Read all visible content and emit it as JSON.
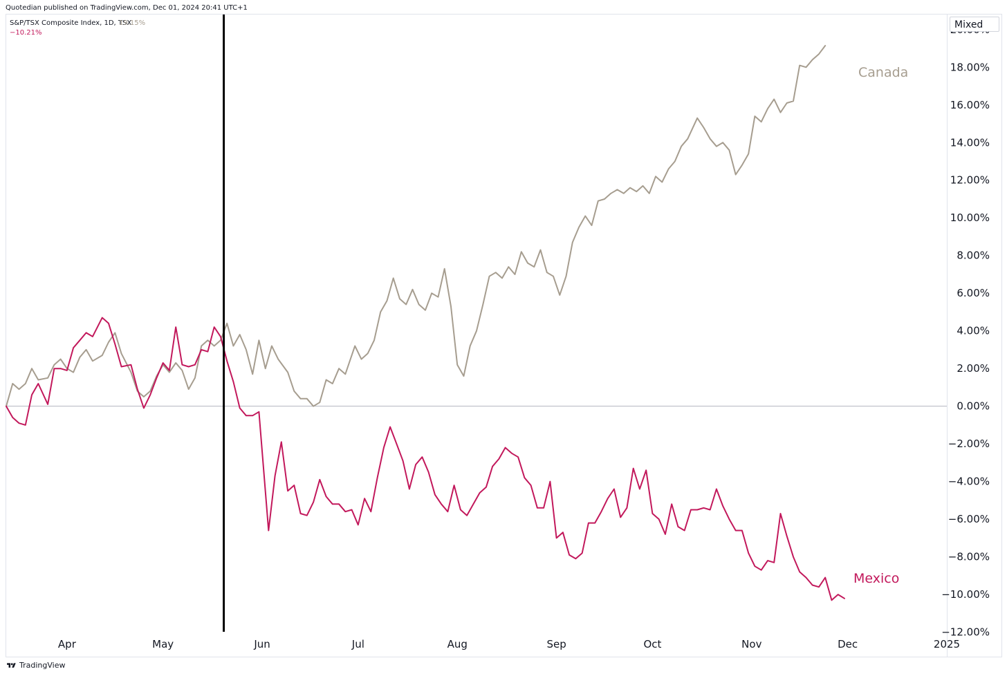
{
  "header": {
    "published_text": "Quotedian published on TradingView.com, Dec 01, 2024 20:41 UTC+1"
  },
  "legend": {
    "symbol_text": "S&P/TSX Composite Index, 1D, TSX",
    "canada_value": "19.15%",
    "mexico_value": "−10.21%"
  },
  "mode_button": {
    "label": "Mixed"
  },
  "footer": {
    "brand": "TradingView",
    "logo_icon": "tradingview-logo-icon"
  },
  "colors": {
    "canada": "#a69d8f",
    "mexico": "#c2185b",
    "zero_line": "#b2b5be",
    "marker": "#000000"
  },
  "chart_data": {
    "type": "line",
    "y_unit": "%",
    "ylim": [
      -13.3,
      20.8
    ],
    "y_ticks": [
      "20.00%",
      "18.00%",
      "16.00%",
      "14.00%",
      "12.00%",
      "10.00%",
      "8.00%",
      "6.00%",
      "4.00%",
      "2.00%",
      "0.00%",
      "−2.00%",
      "−4.00%",
      "−6.00%",
      "−8.00%",
      "−10.00%",
      "−12.00%"
    ],
    "y_tick_values": [
      20,
      18,
      16,
      14,
      12,
      10,
      8,
      6,
      4,
      2,
      0,
      -2,
      -4,
      -6,
      -8,
      -10,
      -12
    ],
    "x_ticks": [
      {
        "label": "Apr",
        "date": "2024-04-01"
      },
      {
        "label": "May",
        "date": "2024-05-01"
      },
      {
        "label": "Jun",
        "date": "2024-06-01"
      },
      {
        "label": "Jul",
        "date": "2024-07-01"
      },
      {
        "label": "Aug",
        "date": "2024-08-01"
      },
      {
        "label": "Sep",
        "date": "2024-09-01"
      },
      {
        "label": "Oct",
        "date": "2024-10-01"
      },
      {
        "label": "Nov",
        "date": "2024-11-01"
      },
      {
        "label": "Dec",
        "date": "2024-12-01"
      },
      {
        "label": "2025",
        "date": "2025-01-01"
      }
    ],
    "xlim": [
      "2024-03-13",
      "2025-01-01"
    ],
    "zero_line": true,
    "vertical_marker": {
      "date": "2024-05-20"
    },
    "series": [
      {
        "name": "Canada",
        "points": [
          [
            "2024-03-13",
            0.0
          ],
          [
            "2024-03-15",
            1.2
          ],
          [
            "2024-03-17",
            0.9
          ],
          [
            "2024-03-19",
            1.2
          ],
          [
            "2024-03-21",
            2.0
          ],
          [
            "2024-03-23",
            1.4
          ],
          [
            "2024-03-26",
            1.5
          ],
          [
            "2024-03-28",
            2.2
          ],
          [
            "2024-03-30",
            2.5
          ],
          [
            "2024-04-01",
            2.0
          ],
          [
            "2024-04-03",
            1.8
          ],
          [
            "2024-04-05",
            2.6
          ],
          [
            "2024-04-07",
            3.0
          ],
          [
            "2024-04-09",
            2.4
          ],
          [
            "2024-04-12",
            2.7
          ],
          [
            "2024-04-14",
            3.4
          ],
          [
            "2024-04-16",
            3.9
          ],
          [
            "2024-04-18",
            2.8
          ],
          [
            "2024-04-21",
            1.8
          ],
          [
            "2024-04-23",
            0.8
          ],
          [
            "2024-04-25",
            0.5
          ],
          [
            "2024-04-27",
            0.8
          ],
          [
            "2024-04-29",
            1.6
          ],
          [
            "2024-05-01",
            2.2
          ],
          [
            "2024-05-03",
            1.8
          ],
          [
            "2024-05-05",
            2.3
          ],
          [
            "2024-05-07",
            1.9
          ],
          [
            "2024-05-09",
            0.9
          ],
          [
            "2024-05-11",
            1.5
          ],
          [
            "2024-05-13",
            3.2
          ],
          [
            "2024-05-15",
            3.5
          ],
          [
            "2024-05-17",
            3.2
          ],
          [
            "2024-05-19",
            3.5
          ],
          [
            "2024-05-21",
            4.4
          ],
          [
            "2024-05-23",
            3.2
          ],
          [
            "2024-05-25",
            3.8
          ],
          [
            "2024-05-27",
            3.0
          ],
          [
            "2024-05-29",
            1.7
          ],
          [
            "2024-05-31",
            3.5
          ],
          [
            "2024-06-02",
            2.0
          ],
          [
            "2024-06-04",
            3.2
          ],
          [
            "2024-06-06",
            2.5
          ],
          [
            "2024-06-09",
            1.8
          ],
          [
            "2024-06-11",
            0.8
          ],
          [
            "2024-06-13",
            0.4
          ],
          [
            "2024-06-15",
            0.4
          ],
          [
            "2024-06-17",
            0.0
          ],
          [
            "2024-06-19",
            0.2
          ],
          [
            "2024-06-21",
            1.4
          ],
          [
            "2024-06-23",
            1.2
          ],
          [
            "2024-06-25",
            2.0
          ],
          [
            "2024-06-27",
            1.7
          ],
          [
            "2024-06-30",
            3.2
          ],
          [
            "2024-07-02",
            2.5
          ],
          [
            "2024-07-04",
            2.8
          ],
          [
            "2024-07-06",
            3.5
          ],
          [
            "2024-07-08",
            5.0
          ],
          [
            "2024-07-10",
            5.6
          ],
          [
            "2024-07-12",
            6.8
          ],
          [
            "2024-07-14",
            5.7
          ],
          [
            "2024-07-16",
            5.4
          ],
          [
            "2024-07-18",
            6.2
          ],
          [
            "2024-07-20",
            5.4
          ],
          [
            "2024-07-22",
            5.1
          ],
          [
            "2024-07-24",
            6.0
          ],
          [
            "2024-07-26",
            5.8
          ],
          [
            "2024-07-28",
            7.3
          ],
          [
            "2024-07-30",
            5.3
          ],
          [
            "2024-08-01",
            2.2
          ],
          [
            "2024-08-03",
            1.6
          ],
          [
            "2024-08-05",
            3.2
          ],
          [
            "2024-08-07",
            4.0
          ],
          [
            "2024-08-09",
            5.4
          ],
          [
            "2024-08-11",
            6.9
          ],
          [
            "2024-08-13",
            7.1
          ],
          [
            "2024-08-15",
            6.8
          ],
          [
            "2024-08-17",
            7.4
          ],
          [
            "2024-08-19",
            7.0
          ],
          [
            "2024-08-21",
            8.2
          ],
          [
            "2024-08-23",
            7.6
          ],
          [
            "2024-08-25",
            7.4
          ],
          [
            "2024-08-27",
            8.3
          ],
          [
            "2024-08-29",
            7.1
          ],
          [
            "2024-08-31",
            6.9
          ],
          [
            "2024-09-02",
            5.9
          ],
          [
            "2024-09-04",
            6.9
          ],
          [
            "2024-09-06",
            8.7
          ],
          [
            "2024-09-08",
            9.5
          ],
          [
            "2024-09-10",
            10.1
          ],
          [
            "2024-09-12",
            9.6
          ],
          [
            "2024-09-14",
            10.9
          ],
          [
            "2024-09-16",
            11.0
          ],
          [
            "2024-09-18",
            11.3
          ],
          [
            "2024-09-20",
            11.5
          ],
          [
            "2024-09-22",
            11.3
          ],
          [
            "2024-09-24",
            11.6
          ],
          [
            "2024-09-26",
            11.4
          ],
          [
            "2024-09-28",
            11.7
          ],
          [
            "2024-09-30",
            11.3
          ],
          [
            "2024-10-02",
            12.2
          ],
          [
            "2024-10-04",
            11.9
          ],
          [
            "2024-10-06",
            12.6
          ],
          [
            "2024-10-08",
            13.0
          ],
          [
            "2024-10-10",
            13.8
          ],
          [
            "2024-10-12",
            14.2
          ],
          [
            "2024-10-15",
            15.3
          ],
          [
            "2024-10-17",
            14.8
          ],
          [
            "2024-10-19",
            14.2
          ],
          [
            "2024-10-21",
            13.8
          ],
          [
            "2024-10-23",
            14.0
          ],
          [
            "2024-10-25",
            13.6
          ],
          [
            "2024-10-27",
            12.3
          ],
          [
            "2024-10-29",
            12.8
          ],
          [
            "2024-10-31",
            13.4
          ],
          [
            "2024-11-02",
            15.4
          ],
          [
            "2024-11-04",
            15.1
          ],
          [
            "2024-11-06",
            15.8
          ],
          [
            "2024-11-08",
            16.3
          ],
          [
            "2024-11-10",
            15.6
          ],
          [
            "2024-11-12",
            16.1
          ],
          [
            "2024-11-14",
            16.2
          ],
          [
            "2024-11-16",
            18.1
          ],
          [
            "2024-11-18",
            18.0
          ],
          [
            "2024-11-20",
            18.4
          ],
          [
            "2024-11-22",
            18.7
          ],
          [
            "2024-11-24",
            19.15
          ]
        ]
      },
      {
        "name": "Mexico",
        "points": [
          [
            "2024-03-13",
            0.0
          ],
          [
            "2024-03-15",
            -0.6
          ],
          [
            "2024-03-17",
            -0.9
          ],
          [
            "2024-03-19",
            -1.0
          ],
          [
            "2024-03-21",
            0.6
          ],
          [
            "2024-03-23",
            1.2
          ],
          [
            "2024-03-26",
            0.1
          ],
          [
            "2024-03-28",
            2.0
          ],
          [
            "2024-03-30",
            2.0
          ],
          [
            "2024-04-01",
            1.9
          ],
          [
            "2024-04-03",
            3.1
          ],
          [
            "2024-04-05",
            3.5
          ],
          [
            "2024-04-07",
            3.9
          ],
          [
            "2024-04-09",
            3.7
          ],
          [
            "2024-04-12",
            4.7
          ],
          [
            "2024-04-14",
            4.4
          ],
          [
            "2024-04-16",
            3.3
          ],
          [
            "2024-04-18",
            2.1
          ],
          [
            "2024-04-21",
            2.2
          ],
          [
            "2024-04-23",
            0.9
          ],
          [
            "2024-04-25",
            -0.1
          ],
          [
            "2024-04-27",
            0.6
          ],
          [
            "2024-04-29",
            1.5
          ],
          [
            "2024-05-01",
            2.3
          ],
          [
            "2024-05-03",
            1.9
          ],
          [
            "2024-05-05",
            4.2
          ],
          [
            "2024-05-07",
            2.2
          ],
          [
            "2024-05-09",
            2.1
          ],
          [
            "2024-05-11",
            2.2
          ],
          [
            "2024-05-13",
            3.0
          ],
          [
            "2024-05-15",
            2.9
          ],
          [
            "2024-05-17",
            4.2
          ],
          [
            "2024-05-19",
            3.7
          ],
          [
            "2024-05-21",
            2.4
          ],
          [
            "2024-05-23",
            1.3
          ],
          [
            "2024-05-25",
            -0.1
          ],
          [
            "2024-05-27",
            -0.5
          ],
          [
            "2024-05-29",
            -0.5
          ],
          [
            "2024-05-31",
            -0.3
          ],
          [
            "2024-06-03",
            -6.6
          ],
          [
            "2024-06-05",
            -3.7
          ],
          [
            "2024-06-07",
            -1.9
          ],
          [
            "2024-06-09",
            -4.5
          ],
          [
            "2024-06-11",
            -4.2
          ],
          [
            "2024-06-13",
            -5.7
          ],
          [
            "2024-06-15",
            -5.8
          ],
          [
            "2024-06-17",
            -5.1
          ],
          [
            "2024-06-19",
            -3.9
          ],
          [
            "2024-06-21",
            -4.8
          ],
          [
            "2024-06-23",
            -5.2
          ],
          [
            "2024-06-25",
            -5.2
          ],
          [
            "2024-06-27",
            -5.6
          ],
          [
            "2024-06-29",
            -5.5
          ],
          [
            "2024-07-01",
            -6.3
          ],
          [
            "2024-07-03",
            -4.9
          ],
          [
            "2024-07-05",
            -5.6
          ],
          [
            "2024-07-07",
            -3.8
          ],
          [
            "2024-07-09",
            -2.2
          ],
          [
            "2024-07-11",
            -1.1
          ],
          [
            "2024-07-13",
            -2.0
          ],
          [
            "2024-07-15",
            -2.9
          ],
          [
            "2024-07-17",
            -4.4
          ],
          [
            "2024-07-19",
            -3.1
          ],
          [
            "2024-07-21",
            -2.7
          ],
          [
            "2024-07-23",
            -3.5
          ],
          [
            "2024-07-25",
            -4.7
          ],
          [
            "2024-07-27",
            -5.2
          ],
          [
            "2024-07-29",
            -5.6
          ],
          [
            "2024-07-31",
            -4.2
          ],
          [
            "2024-08-02",
            -5.5
          ],
          [
            "2024-08-04",
            -5.8
          ],
          [
            "2024-08-06",
            -5.2
          ],
          [
            "2024-08-08",
            -4.6
          ],
          [
            "2024-08-10",
            -4.3
          ],
          [
            "2024-08-12",
            -3.2
          ],
          [
            "2024-08-14",
            -2.8
          ],
          [
            "2024-08-16",
            -2.2
          ],
          [
            "2024-08-18",
            -2.5
          ],
          [
            "2024-08-20",
            -2.7
          ],
          [
            "2024-08-22",
            -3.8
          ],
          [
            "2024-08-24",
            -4.2
          ],
          [
            "2024-08-26",
            -5.4
          ],
          [
            "2024-08-28",
            -5.4
          ],
          [
            "2024-08-30",
            -4.0
          ],
          [
            "2024-09-01",
            -7.0
          ],
          [
            "2024-09-03",
            -6.7
          ],
          [
            "2024-09-05",
            -7.9
          ],
          [
            "2024-09-07",
            -8.1
          ],
          [
            "2024-09-09",
            -7.8
          ],
          [
            "2024-09-11",
            -6.2
          ],
          [
            "2024-09-13",
            -6.2
          ],
          [
            "2024-09-15",
            -5.6
          ],
          [
            "2024-09-17",
            -4.9
          ],
          [
            "2024-09-19",
            -4.4
          ],
          [
            "2024-09-21",
            -5.9
          ],
          [
            "2024-09-23",
            -5.4
          ],
          [
            "2024-09-25",
            -3.3
          ],
          [
            "2024-09-27",
            -4.4
          ],
          [
            "2024-09-29",
            -3.4
          ],
          [
            "2024-10-01",
            -5.7
          ],
          [
            "2024-10-03",
            -6.0
          ],
          [
            "2024-10-05",
            -6.8
          ],
          [
            "2024-10-07",
            -5.2
          ],
          [
            "2024-10-09",
            -6.4
          ],
          [
            "2024-10-11",
            -6.6
          ],
          [
            "2024-10-13",
            -5.5
          ],
          [
            "2024-10-15",
            -5.5
          ],
          [
            "2024-10-17",
            -5.4
          ],
          [
            "2024-10-19",
            -5.5
          ],
          [
            "2024-10-21",
            -4.4
          ],
          [
            "2024-10-23",
            -5.3
          ],
          [
            "2024-10-25",
            -6.0
          ],
          [
            "2024-10-27",
            -6.6
          ],
          [
            "2024-10-29",
            -6.6
          ],
          [
            "2024-10-31",
            -7.8
          ],
          [
            "2024-11-02",
            -8.5
          ],
          [
            "2024-11-04",
            -8.7
          ],
          [
            "2024-11-06",
            -8.2
          ],
          [
            "2024-11-08",
            -8.3
          ],
          [
            "2024-11-10",
            -5.7
          ],
          [
            "2024-11-12",
            -6.9
          ],
          [
            "2024-11-14",
            -8.0
          ],
          [
            "2024-11-16",
            -8.8
          ],
          [
            "2024-11-18",
            -9.1
          ],
          [
            "2024-11-20",
            -9.5
          ],
          [
            "2024-11-22",
            -9.6
          ],
          [
            "2024-11-24",
            -9.1
          ],
          [
            "2024-11-26",
            -10.3
          ],
          [
            "2024-11-28",
            -10.0
          ],
          [
            "2024-11-30",
            -10.21
          ]
        ]
      }
    ]
  }
}
